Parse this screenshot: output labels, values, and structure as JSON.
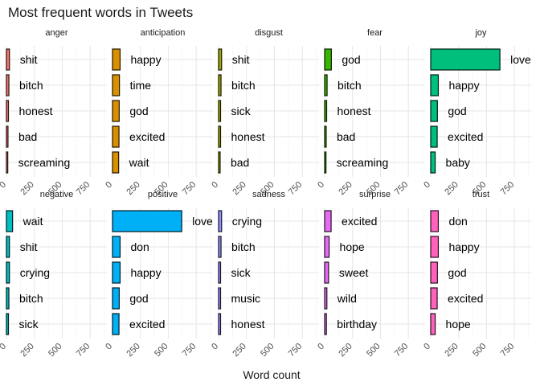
{
  "chart_data": {
    "type": "bar",
    "title": "Most frequent words in Tweets",
    "xlabel": "Word count",
    "ylabel": "",
    "xlim": [
      0,
      900
    ],
    "x_ticks": [
      0,
      250,
      500,
      750
    ],
    "grid": true,
    "legend": "none",
    "panels": [
      {
        "name": "anger",
        "color": "#F8766D",
        "words": [
          "shit",
          "bitch",
          "honest",
          "bad",
          "screaming"
        ],
        "values": [
          27,
          22,
          18,
          14,
          12
        ]
      },
      {
        "name": "anticipation",
        "color": "#D89000",
        "words": [
          "happy",
          "time",
          "god",
          "excited",
          "wait"
        ],
        "values": [
          68,
          62,
          60,
          58,
          55
        ]
      },
      {
        "name": "disgust",
        "color": "#A3A500",
        "words": [
          "shit",
          "bitch",
          "sick",
          "honest",
          "bad"
        ],
        "values": [
          27,
          22,
          18,
          18,
          14
        ]
      },
      {
        "name": "fear",
        "color": "#39B600",
        "words": [
          "god",
          "bitch",
          "honest",
          "bad",
          "screaming"
        ],
        "values": [
          60,
          22,
          18,
          14,
          12
        ]
      },
      {
        "name": "joy",
        "color": "#00BF7D",
        "words": [
          "love",
          "happy",
          "god",
          "excited",
          "baby"
        ],
        "values": [
          620,
          68,
          60,
          58,
          40
        ]
      },
      {
        "name": "negative",
        "color": "#00BFC4",
        "words": [
          "wait",
          "shit",
          "crying",
          "bitch",
          "sick"
        ],
        "values": [
          55,
          27,
          27,
          22,
          18
        ]
      },
      {
        "name": "positive",
        "color": "#00B0F6",
        "words": [
          "love",
          "don",
          "happy",
          "god",
          "excited"
        ],
        "values": [
          620,
          68,
          68,
          60,
          58
        ]
      },
      {
        "name": "sadness",
        "color": "#9590FF",
        "words": [
          "crying",
          "bitch",
          "sick",
          "music",
          "honest"
        ],
        "values": [
          27,
          22,
          18,
          18,
          18
        ]
      },
      {
        "name": "surprise",
        "color": "#E76BF3",
        "words": [
          "excited",
          "hope",
          "sweet",
          "wild",
          "birthday"
        ],
        "values": [
          58,
          40,
          35,
          20,
          16
        ]
      },
      {
        "name": "trust",
        "color": "#FF62BC",
        "words": [
          "don",
          "happy",
          "god",
          "excited",
          "hope"
        ],
        "values": [
          68,
          68,
          60,
          58,
          40
        ]
      }
    ]
  }
}
